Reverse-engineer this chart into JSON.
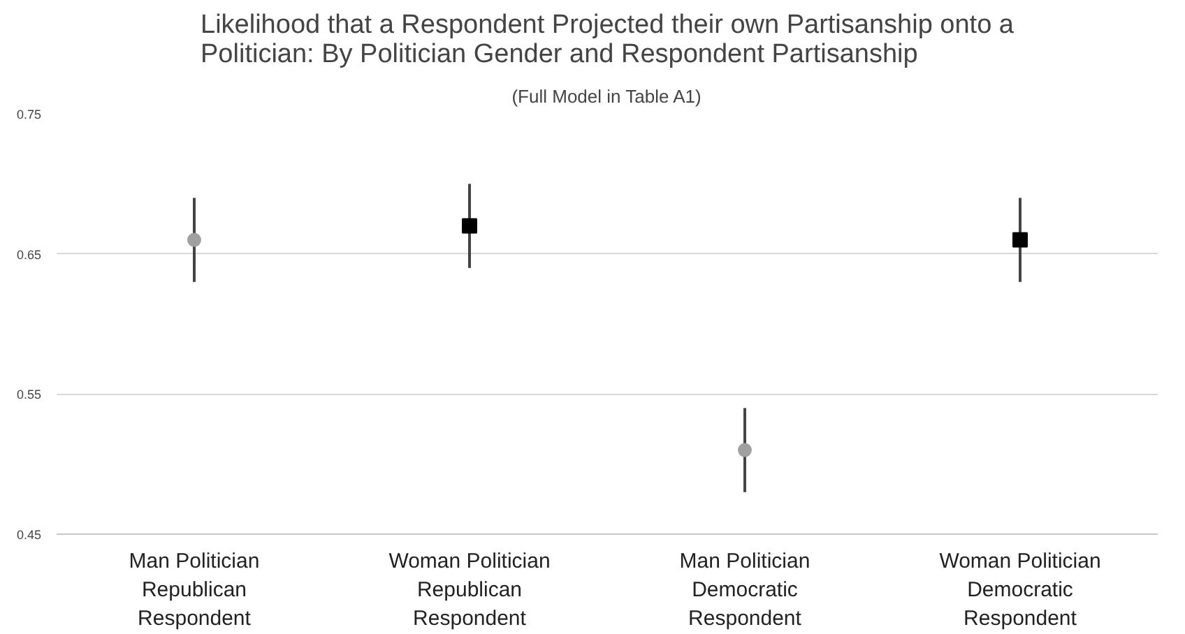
{
  "chart_data": {
    "type": "scatter",
    "title": "Likelihood that a Respondent Projected their own Partisanship onto a\nPolitician: By Politician Gender and Respondent Partisanship",
    "subtitle": "(Full Model in Table A1)",
    "categories": [
      "Man Politician\nRepublican\nRespondent",
      "Woman Politician\nRepublican\nRespondent",
      "Man Politician\nDemocratic\nRespondent",
      "Woman Politician\nDemocratic\nRespondent"
    ],
    "series": [
      {
        "color": "#a0a0a0",
        "marker": "circle",
        "values": [
          0.66,
          null,
          0.51,
          null
        ],
        "errors": [
          [
            0.63,
            0.69
          ],
          null,
          [
            0.48,
            0.54
          ],
          null
        ]
      },
      {
        "color": "#000000",
        "marker": "square",
        "values": [
          null,
          0.67,
          null,
          0.66
        ],
        "errors": [
          null,
          [
            0.64,
            0.7
          ],
          null,
          [
            0.63,
            0.69
          ]
        ]
      }
    ],
    "ylim": [
      0.45,
      0.75
    ],
    "yticks": [
      0.45,
      0.55,
      0.65,
      0.75
    ],
    "grid": "y"
  }
}
